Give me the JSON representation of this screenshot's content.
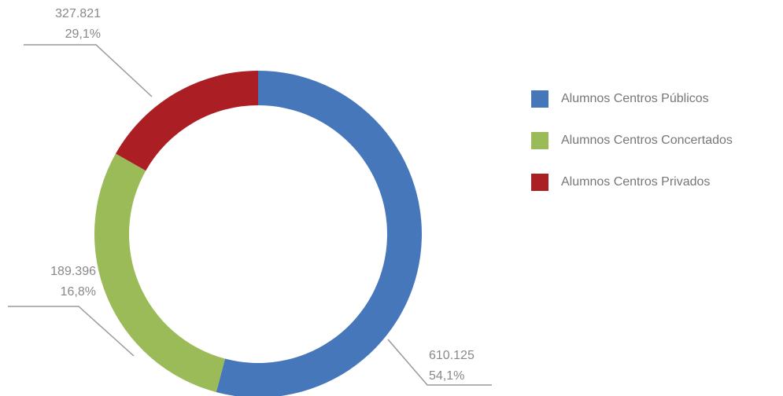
{
  "chart_data": {
    "type": "donut",
    "categories": [
      "Alumnos Centros Públicos",
      "Alumnos Centros Concertados",
      "Alumnos Centros Privados"
    ],
    "values": [
      610125,
      327821,
      189396
    ],
    "value_labels": [
      "610.125",
      "327.821",
      "189.396"
    ],
    "percentages": [
      54.1,
      29.1,
      16.8
    ],
    "percent_labels": [
      "54,1%",
      "29,1%",
      "16,8%"
    ],
    "colors": [
      "#4677bb",
      "#9bbb59",
      "#ab1f24"
    ],
    "legend": "right"
  }
}
